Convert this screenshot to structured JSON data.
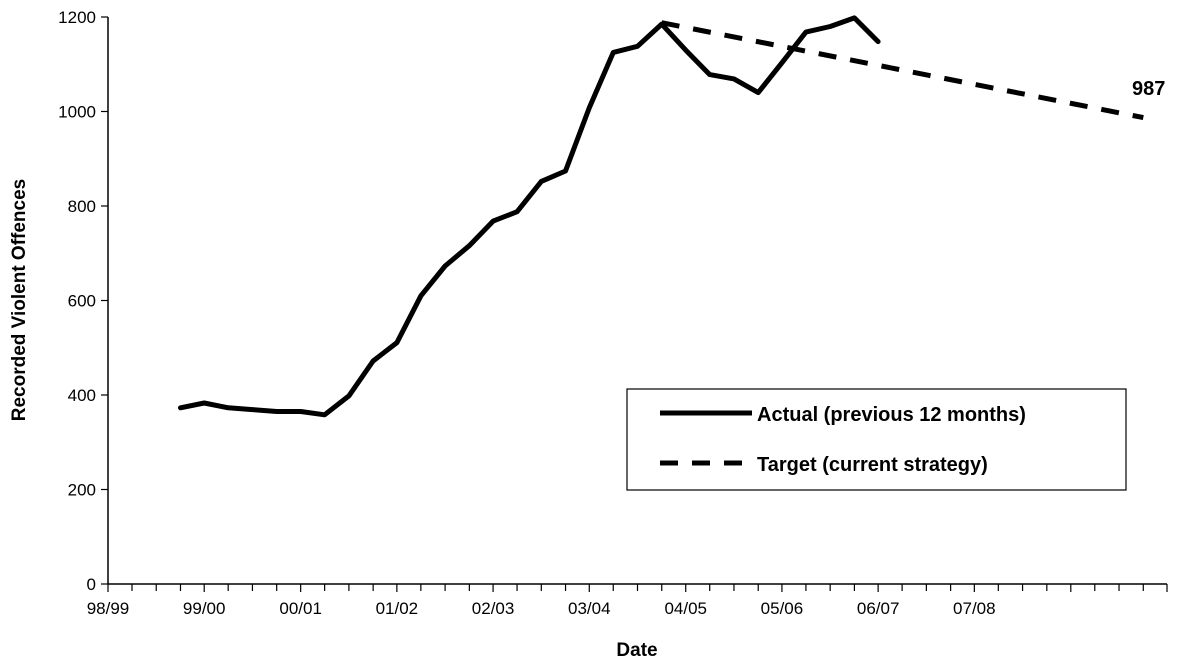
{
  "chart_data": {
    "type": "line",
    "title": "",
    "xlabel": "Date",
    "ylabel": "Recorded Violent Offences",
    "x_tick_labels": [
      "98/99",
      "99/00",
      "00/01",
      "01/02",
      "02/03",
      "03/04",
      "04/05",
      "05/06",
      "06/07",
      "07/08"
    ],
    "y_ticks": [
      0,
      200,
      400,
      600,
      800,
      1000,
      1200
    ],
    "ylim": [
      0,
      1200
    ],
    "xlim": [
      "1998-04-01",
      "2009-04-01"
    ],
    "grid": false,
    "legend_position": "lower-right",
    "series": [
      {
        "name": "Actual (previous 12 months)",
        "style": "solid",
        "color": "#000000",
        "points": [
          {
            "x": "1999-01-01",
            "y": 373
          },
          {
            "x": "1999-04-01",
            "y": 383
          },
          {
            "x": "1999-07-01",
            "y": 373
          },
          {
            "x": "1999-10-01",
            "y": 369
          },
          {
            "x": "2000-01-01",
            "y": 365
          },
          {
            "x": "2000-04-01",
            "y": 365
          },
          {
            "x": "2000-07-01",
            "y": 358
          },
          {
            "x": "2000-10-01",
            "y": 398
          },
          {
            "x": "2001-01-01",
            "y": 472
          },
          {
            "x": "2001-04-01",
            "y": 511
          },
          {
            "x": "2001-07-01",
            "y": 610
          },
          {
            "x": "2001-10-01",
            "y": 673
          },
          {
            "x": "2002-01-01",
            "y": 716
          },
          {
            "x": "2002-04-01",
            "y": 768
          },
          {
            "x": "2002-07-01",
            "y": 788
          },
          {
            "x": "2002-10-01",
            "y": 852
          },
          {
            "x": "2003-01-01",
            "y": 874
          },
          {
            "x": "2003-04-01",
            "y": 1008
          },
          {
            "x": "2003-07-01",
            "y": 1125
          },
          {
            "x": "2003-10-01",
            "y": 1138
          },
          {
            "x": "2004-01-01",
            "y": 1185
          },
          {
            "x": "2004-04-01",
            "y": 1130
          },
          {
            "x": "2004-07-01",
            "y": 1078
          },
          {
            "x": "2004-10-01",
            "y": 1069
          },
          {
            "x": "2005-01-01",
            "y": 1040
          },
          {
            "x": "2005-04-01",
            "y": 1103
          },
          {
            "x": "2005-07-01",
            "y": 1168
          },
          {
            "x": "2005-10-01",
            "y": 1180
          },
          {
            "x": "2006-01-01",
            "y": 1198
          },
          {
            "x": "2006-04-01",
            "y": 1148
          }
        ]
      },
      {
        "name": "Target (current strategy)",
        "style": "dashed",
        "color": "#000000",
        "points": [
          {
            "x": "2004-01-01",
            "y": 1188
          },
          {
            "x": "2009-01-01",
            "y": 987
          }
        ]
      }
    ],
    "annotations": [
      {
        "text": "987",
        "x": "2009-01-01",
        "y": 987
      }
    ]
  }
}
